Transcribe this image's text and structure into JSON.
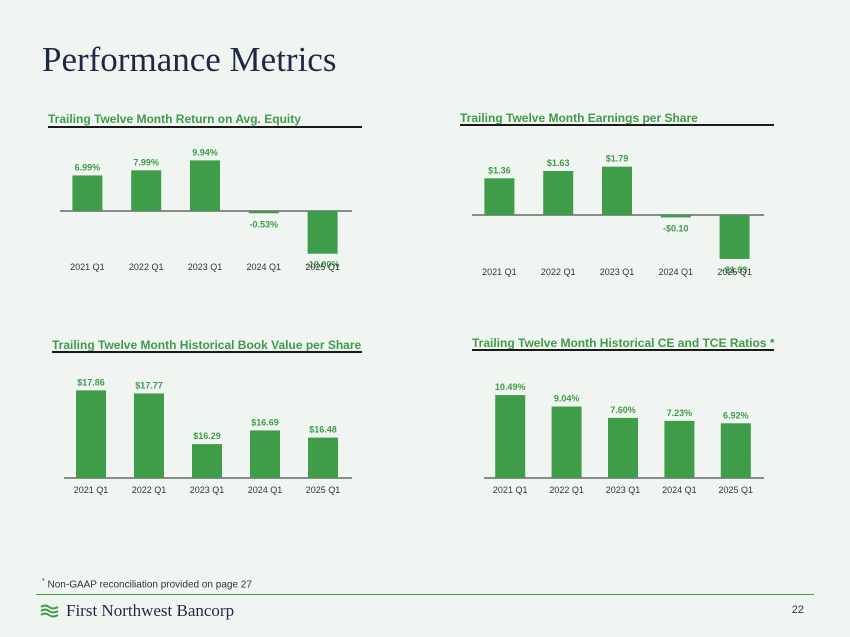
{
  "page": {
    "title": "Performance Metrics",
    "footnote": "Non-GAAP reconciliation provided on page 27",
    "footnote_marker": "*",
    "company": "First Northwest Bancorp",
    "page_number": "22",
    "accent_color": "#3f9c48"
  },
  "chart_data": [
    {
      "type": "bar",
      "title": "Trailing Twelve Month Return on Avg. Equity",
      "categories": [
        "2021 Q1",
        "2022 Q1",
        "2023 Q1",
        "2024 Q1",
        "2025 Q1"
      ],
      "values": [
        6.99,
        7.99,
        9.94,
        -0.53,
        -10.0
      ],
      "labels": [
        "6.99%",
        "7.99%",
        "9.94%",
        "-0.53%",
        "-10.00%"
      ],
      "ylim": [
        -11,
        11
      ],
      "color": "#3f9c48"
    },
    {
      "type": "bar",
      "title": "Trailing Twelve Month Earnings per Share",
      "categories": [
        "2021 Q1",
        "2022 Q1",
        "2023 Q1",
        "2024 Q1",
        "2025 Q1"
      ],
      "values": [
        1.36,
        1.63,
        1.79,
        -0.1,
        -1.83
      ],
      "labels": [
        "$1.36",
        "$1.63",
        "$1.79",
        "-$0.10",
        "-$1.83"
      ],
      "ylim": [
        -2,
        2
      ],
      "color": "#3f9c48"
    },
    {
      "type": "bar",
      "title": "Trailing Twelve Month Historical Book Value per Share",
      "categories": [
        "2021 Q1",
        "2022 Q1",
        "2023 Q1",
        "2024 Q1",
        "2025 Q1"
      ],
      "values": [
        17.86,
        17.77,
        16.29,
        16.69,
        16.48
      ],
      "labels": [
        "$17.86",
        "$17.77",
        "$16.29",
        "$16.69",
        "$16.48"
      ],
      "ylim": [
        15.3,
        17.9
      ],
      "color": "#3f9c48"
    },
    {
      "type": "bar",
      "title": "Trailing Twelve Month Historical CE and TCE Ratios *",
      "categories": [
        "2021 Q1",
        "2022 Q1",
        "2023 Q1",
        "2024 Q1",
        "2025 Q1"
      ],
      "values": [
        10.49,
        9.04,
        7.6,
        7.23,
        6.92
      ],
      "labels": [
        "10.49%",
        "9.04%",
        "7.60%",
        "7.23%",
        "6.92%"
      ],
      "ylim": [
        0,
        10.5
      ],
      "color": "#3f9c48"
    }
  ]
}
